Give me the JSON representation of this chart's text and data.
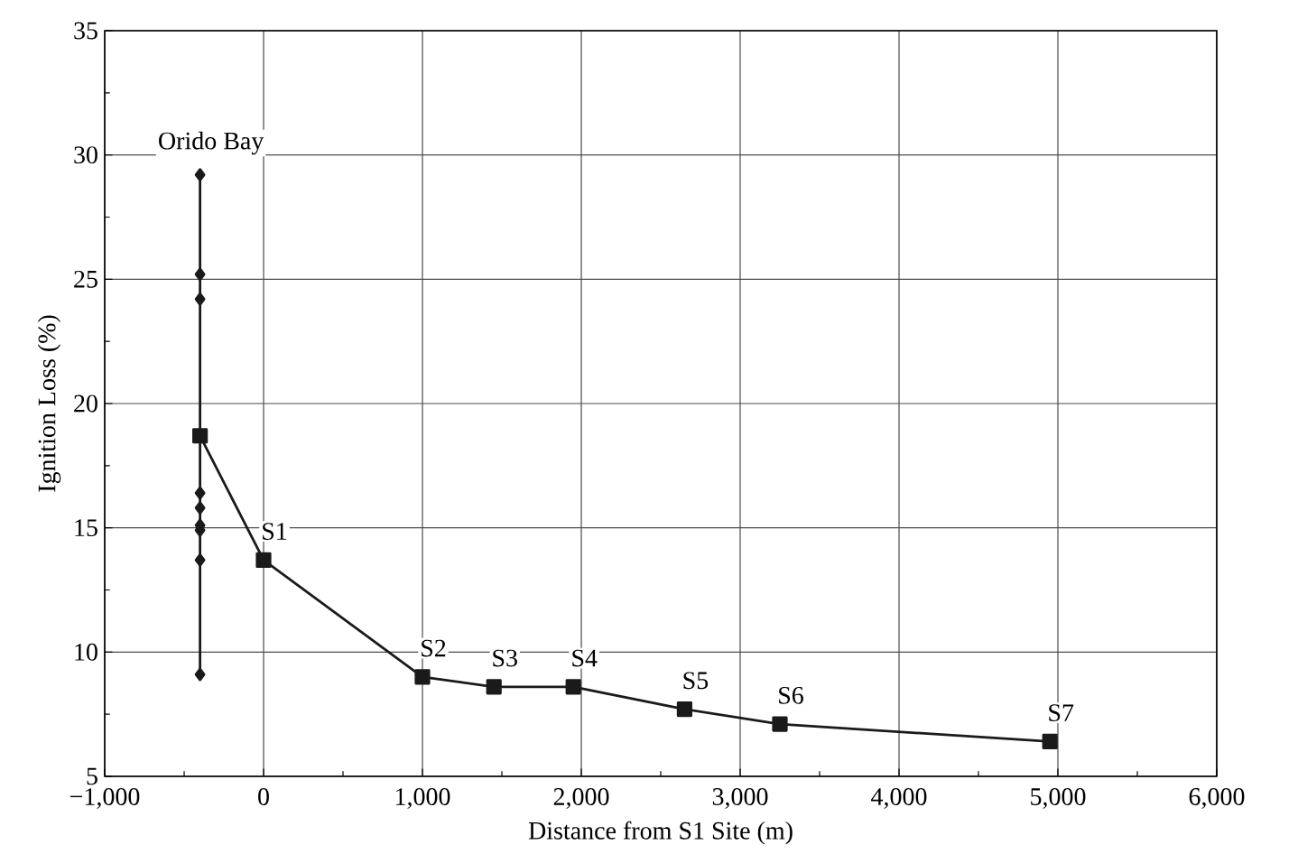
{
  "chart_data": {
    "type": "line",
    "xlabel": "Distance from S1 Site (m)",
    "ylabel": "Ignition Loss (%)",
    "xlim": [
      -1000,
      6000
    ],
    "ylim": [
      5,
      35
    ],
    "xticks": [
      {
        "value": -1000,
        "label": "−1,000"
      },
      0,
      {
        "value": 1000,
        "label": "1,000"
      },
      {
        "value": 2000,
        "label": "2,000"
      },
      {
        "value": 3000,
        "label": "3,000"
      },
      {
        "value": 4000,
        "label": "4,000"
      },
      {
        "value": 5000,
        "label": "5,000"
      },
      {
        "value": 6000,
        "label": "6,000"
      }
    ],
    "yticks": [
      5,
      10,
      15,
      20,
      25,
      30,
      35
    ],
    "grid": true,
    "series": [
      {
        "color": "#1a1a1a",
        "marker": "diamond",
        "x": [
          -400,
          -400,
          -400,
          -400,
          -400,
          -400,
          -400,
          -400,
          -400
        ],
        "values": [
          29.2,
          25.2,
          24.2,
          16.4,
          15.8,
          15.1,
          14.9,
          13.7,
          9.1
        ]
      },
      {
        "color": "#1a1a1a",
        "marker": "square",
        "x": [
          -400,
          0,
          1000,
          1450,
          1950,
          2650,
          3250,
          4950
        ],
        "values": [
          18.7,
          13.7,
          9.0,
          8.6,
          8.6,
          7.7,
          7.1,
          6.4
        ]
      }
    ],
    "annotations": [
      {
        "text": "Orido Bay",
        "x": -400,
        "y": 29.2
      },
      {
        "text": "S1",
        "x": 0,
        "y": 13.7
      },
      {
        "text": "S2",
        "x": 1000,
        "y": 9.0
      },
      {
        "text": "S3",
        "x": 1450,
        "y": 8.6
      },
      {
        "text": "S4",
        "x": 1950,
        "y": 8.6
      },
      {
        "text": "S5",
        "x": 2650,
        "y": 7.7
      },
      {
        "text": "S6",
        "x": 3250,
        "y": 7.1
      },
      {
        "text": "S7",
        "x": 4950,
        "y": 6.4
      }
    ]
  }
}
